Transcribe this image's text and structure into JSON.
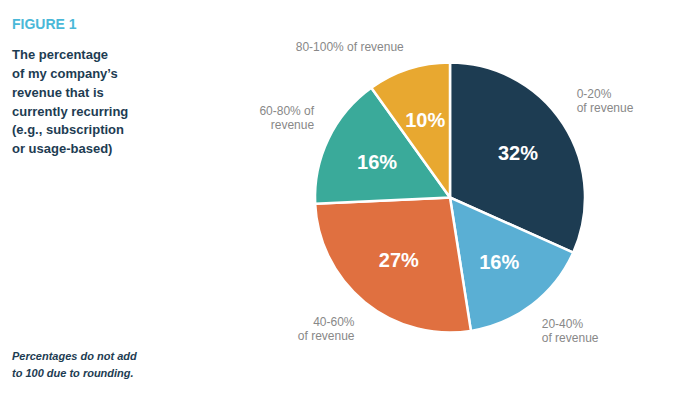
{
  "chart_data": {
    "type": "pie",
    "title": "FIGURE 1",
    "subtitle": "The percentage\nof my company’s\nrevenue that is\ncurrently recurring\n(e.g., subscription\nor usage-based)",
    "annotations": [
      "Percentages do not add\nto 100 due to rounding."
    ],
    "categories": [
      "0-20%\nof revenue",
      "20-40%\nof revenue",
      "40-60%\nof revenue",
      "60-80% of\nrevenue",
      "80-100% of revenue"
    ],
    "values": [
      32,
      16,
      27,
      16,
      10
    ],
    "value_labels": [
      "32%",
      "16%",
      "27%",
      "16%",
      "10%"
    ],
    "colors": [
      "#1d3c52",
      "#5aafd4",
      "#e07040",
      "#3aaa9a",
      "#e8a830"
    ],
    "data_labels": true
  }
}
